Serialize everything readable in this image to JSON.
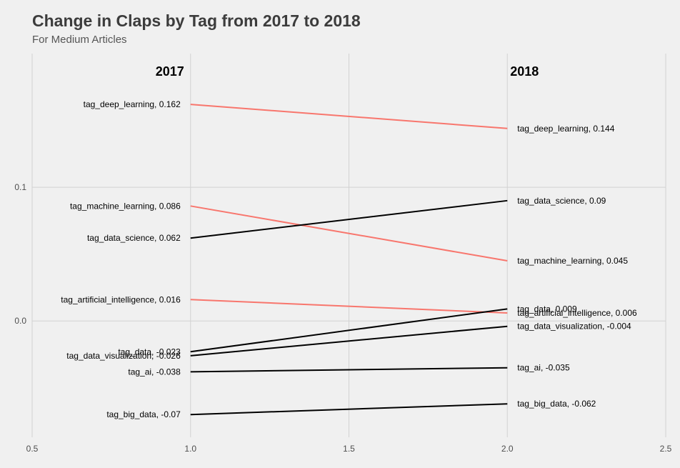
{
  "title": "Change in Claps by Tag from 2017 to 2018",
  "subtitle": "For Medium Articles",
  "chart_data": {
    "type": "line",
    "chart_subtype": "slopegraph",
    "title": "Change in Claps by Tag from 2017 to 2018",
    "subtitle": "For Medium Articles",
    "column_headers": [
      "2017",
      "2018"
    ],
    "x": [
      1.0,
      2.0
    ],
    "xlim": [
      0.5,
      2.5
    ],
    "x_ticks": [
      0.5,
      1.0,
      1.5,
      2.0,
      2.5
    ],
    "x_tick_labels": [
      "0.5",
      "1.0",
      "1.5",
      "2.0",
      "2.5"
    ],
    "ylim": [
      -0.087,
      0.2
    ],
    "y_ticks": [
      0.0,
      0.1
    ],
    "y_tick_labels": [
      "0.0",
      "0.1"
    ],
    "grid": true,
    "legend": "none",
    "colors": {
      "decrease": "#f8766d",
      "increase": "#000000",
      "background": "#f0f0f0"
    },
    "series": [
      {
        "tag": "tag_deep_learning",
        "values": [
          0.162,
          0.144
        ],
        "label_2017": "tag_deep_learning, 0.162",
        "label_2018": "tag_deep_learning, 0.144",
        "color": "#f8766d"
      },
      {
        "tag": "tag_machine_learning",
        "values": [
          0.086,
          0.045
        ],
        "label_2017": "tag_machine_learning, 0.086",
        "label_2018": "tag_machine_learning, 0.045",
        "color": "#f8766d"
      },
      {
        "tag": "tag_data_science",
        "values": [
          0.062,
          0.09
        ],
        "label_2017": "tag_data_science, 0.062",
        "label_2018": "tag_data_science, 0.09",
        "color": "#000000"
      },
      {
        "tag": "tag_artificial_intelligence",
        "values": [
          0.016,
          0.006
        ],
        "label_2017": "tag_artificial_intelligence, 0.016",
        "label_2018": "tag_artificial_intelligence, 0.006",
        "color": "#f8766d"
      },
      {
        "tag": "tag_data",
        "values": [
          -0.023,
          0.009
        ],
        "label_2017": "tag_data, -0.023",
        "label_2018": "tag_data, 0.009",
        "color": "#000000"
      },
      {
        "tag": "tag_data_visualization",
        "values": [
          -0.026,
          -0.004
        ],
        "label_2017": "tag_data_visualization, -0.026",
        "label_2018": "tag_data_visualization, -0.004",
        "color": "#000000"
      },
      {
        "tag": "tag_ai",
        "values": [
          -0.038,
          -0.035
        ],
        "label_2017": "tag_ai, -0.038",
        "label_2018": "tag_ai, -0.035",
        "color": "#000000"
      },
      {
        "tag": "tag_big_data",
        "values": [
          -0.07,
          -0.062
        ],
        "label_2017": "tag_big_data, -0.07",
        "label_2018": "tag_big_data, -0.062",
        "color": "#000000"
      }
    ]
  }
}
